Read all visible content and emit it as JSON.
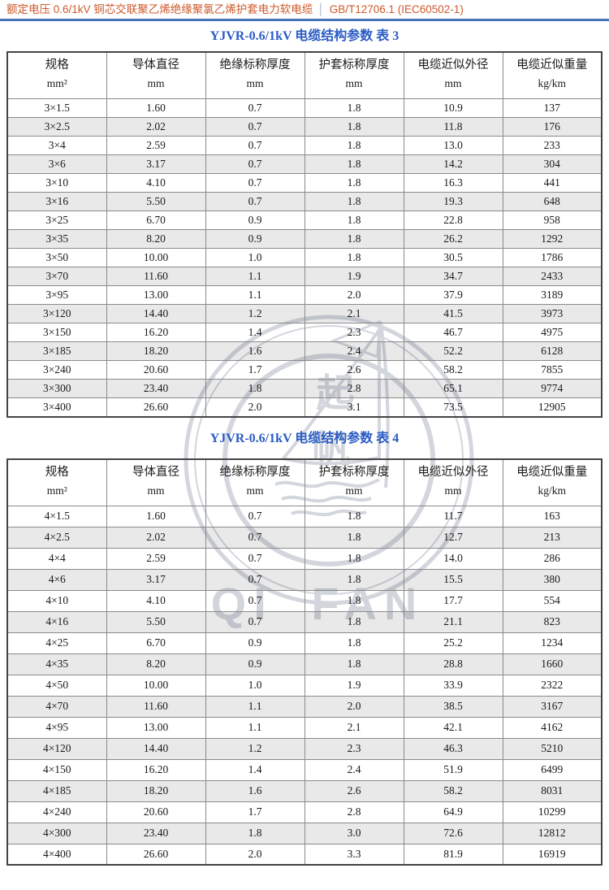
{
  "header": {
    "title": "额定电压 0.6/1kV 铜芯交联聚乙烯绝缘聚氯乙烯护套电力软电缆",
    "separator": "│",
    "standard": "GB/T12706.1 (IEC60502-1)"
  },
  "colors": {
    "header_text": "#cc5a2c",
    "rule_blue": "#4a74b8",
    "title_blue": "#2a5bc4",
    "row_alt_gray": "#e9e9e9",
    "table_border": "#8a8a8a",
    "watermark_gray": "#d3d7dd"
  },
  "watermark": {
    "char_top": "起",
    "char_bottom": "帆",
    "latin": "QI FAN"
  },
  "tables": [
    {
      "title": "YJVR-0.6/1kV 电缆结构参数  表 3",
      "columns": [
        {
          "label": "规格",
          "unit": "mm²"
        },
        {
          "label": "导体直径",
          "unit": "mm"
        },
        {
          "label": "绝缘标称厚度",
          "unit": "mm"
        },
        {
          "label": "护套标称厚度",
          "unit": "mm"
        },
        {
          "label": "电缆近似外径",
          "unit": "mm"
        },
        {
          "label": "电缆近似重量",
          "unit": "kg/km"
        }
      ],
      "rows": [
        [
          "3×1.5",
          "1.60",
          "0.7",
          "1.8",
          "10.9",
          "137"
        ],
        [
          "3×2.5",
          "2.02",
          "0.7",
          "1.8",
          "11.8",
          "176"
        ],
        [
          "3×4",
          "2.59",
          "0.7",
          "1.8",
          "13.0",
          "233"
        ],
        [
          "3×6",
          "3.17",
          "0.7",
          "1.8",
          "14.2",
          "304"
        ],
        [
          "3×10",
          "4.10",
          "0.7",
          "1.8",
          "16.3",
          "441"
        ],
        [
          "3×16",
          "5.50",
          "0.7",
          "1.8",
          "19.3",
          "648"
        ],
        [
          "3×25",
          "6.70",
          "0.9",
          "1.8",
          "22.8",
          "958"
        ],
        [
          "3×35",
          "8.20",
          "0.9",
          "1.8",
          "26.2",
          "1292"
        ],
        [
          "3×50",
          "10.00",
          "1.0",
          "1.8",
          "30.5",
          "1786"
        ],
        [
          "3×70",
          "11.60",
          "1.1",
          "1.9",
          "34.7",
          "2433"
        ],
        [
          "3×95",
          "13.00",
          "1.1",
          "2.0",
          "37.9",
          "3189"
        ],
        [
          "3×120",
          "14.40",
          "1.2",
          "2.1",
          "41.5",
          "3973"
        ],
        [
          "3×150",
          "16.20",
          "1.4",
          "2.3",
          "46.7",
          "4975"
        ],
        [
          "3×185",
          "18.20",
          "1.6",
          "2.4",
          "52.2",
          "6128"
        ],
        [
          "3×240",
          "20.60",
          "1.7",
          "2.6",
          "58.2",
          "7855"
        ],
        [
          "3×300",
          "23.40",
          "1.8",
          "2.8",
          "65.1",
          "9774"
        ],
        [
          "3×400",
          "26.60",
          "2.0",
          "3.1",
          "73.5",
          "12905"
        ]
      ]
    },
    {
      "title": "YJVR-0.6/1kV 电缆结构参数  表 4",
      "columns": [
        {
          "label": "规格",
          "unit": "mm²"
        },
        {
          "label": "导体直径",
          "unit": "mm"
        },
        {
          "label": "绝缘标称厚度",
          "unit": "mm"
        },
        {
          "label": "护套标称厚度",
          "unit": "mm"
        },
        {
          "label": "电缆近似外径",
          "unit": "mm"
        },
        {
          "label": "电缆近似重量",
          "unit": "kg/km"
        }
      ],
      "rows": [
        [
          "4×1.5",
          "1.60",
          "0.7",
          "1.8",
          "11.7",
          "163"
        ],
        [
          "4×2.5",
          "2.02",
          "0.7",
          "1.8",
          "12.7",
          "213"
        ],
        [
          "4×4",
          "2.59",
          "0.7",
          "1.8",
          "14.0",
          "286"
        ],
        [
          "4×6",
          "3.17",
          "0.7",
          "1.8",
          "15.5",
          "380"
        ],
        [
          "4×10",
          "4.10",
          "0.7",
          "1.8",
          "17.7",
          "554"
        ],
        [
          "4×16",
          "5.50",
          "0.7",
          "1.8",
          "21.1",
          "823"
        ],
        [
          "4×25",
          "6.70",
          "0.9",
          "1.8",
          "25.2",
          "1234"
        ],
        [
          "4×35",
          "8.20",
          "0.9",
          "1.8",
          "28.8",
          "1660"
        ],
        [
          "4×50",
          "10.00",
          "1.0",
          "1.9",
          "33.9",
          "2322"
        ],
        [
          "4×70",
          "11.60",
          "1.1",
          "2.0",
          "38.5",
          "3167"
        ],
        [
          "4×95",
          "13.00",
          "1.1",
          "2.1",
          "42.1",
          "4162"
        ],
        [
          "4×120",
          "14.40",
          "1.2",
          "2.3",
          "46.3",
          "5210"
        ],
        [
          "4×150",
          "16.20",
          "1.4",
          "2.4",
          "51.9",
          "6499"
        ],
        [
          "4×185",
          "18.20",
          "1.6",
          "2.6",
          "58.2",
          "8031"
        ],
        [
          "4×240",
          "20.60",
          "1.7",
          "2.8",
          "64.9",
          "10299"
        ],
        [
          "4×300",
          "23.40",
          "1.8",
          "3.0",
          "72.6",
          "12812"
        ],
        [
          "4×400",
          "26.60",
          "2.0",
          "3.3",
          "81.9",
          "16919"
        ]
      ]
    }
  ]
}
